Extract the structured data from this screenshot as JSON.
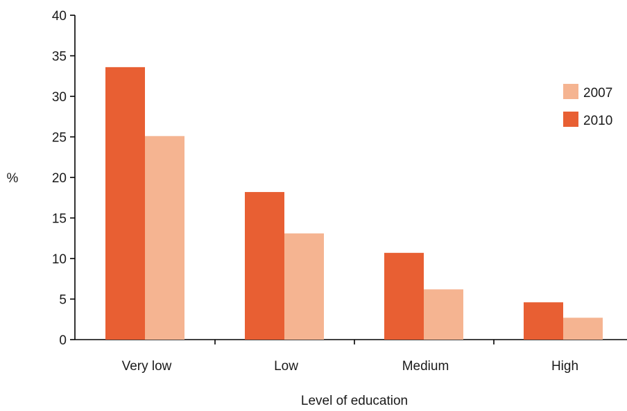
{
  "chart_data": {
    "type": "bar",
    "title": "",
    "xlabel": "Level of education",
    "ylabel": "%",
    "ylim": [
      0,
      40
    ],
    "yticks": [
      0,
      5,
      10,
      15,
      20,
      25,
      30,
      35,
      40
    ],
    "categories": [
      "Very low",
      "Low",
      "Medium",
      "High"
    ],
    "series": [
      {
        "name": "2010",
        "color": "#e85f33",
        "values": [
          33.6,
          18.2,
          10.7,
          4.6
        ]
      },
      {
        "name": "2007",
        "color": "#f5b491",
        "values": [
          25.1,
          13.1,
          6.2,
          2.7
        ]
      }
    ],
    "legend": {
      "position": "right",
      "entries": [
        {
          "label": "2007",
          "color": "#f5b491"
        },
        {
          "label": "2010",
          "color": "#e85f33"
        }
      ]
    },
    "grid": false
  }
}
